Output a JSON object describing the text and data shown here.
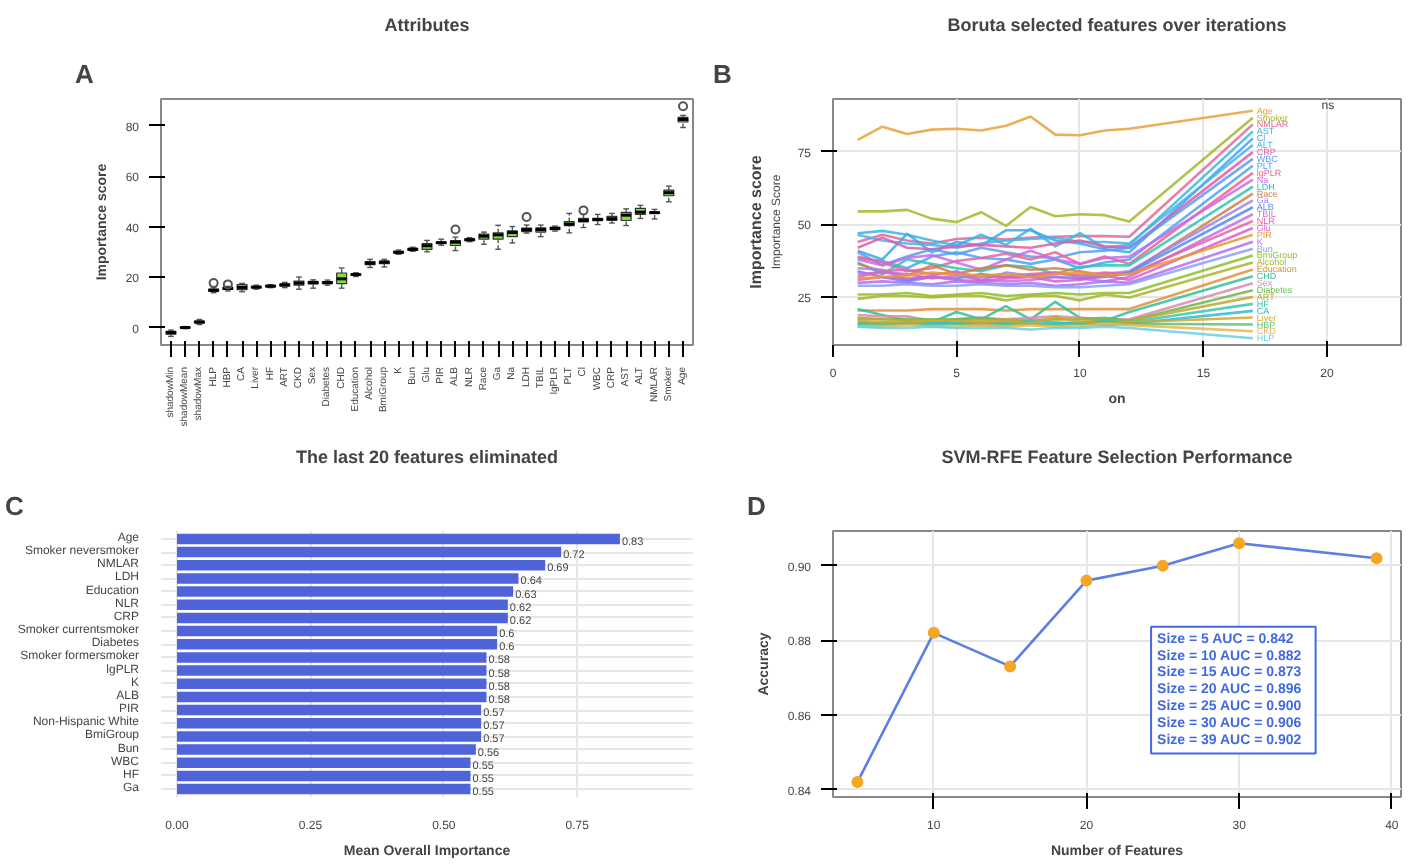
{
  "chart_data": [
    {
      "type": "box",
      "title": "Attributes",
      "ylabel": "Importance score",
      "annotations": [
        "A"
      ],
      "categories": [
        "shadowMin",
        "shadowMean",
        "shadowMax",
        "HLP",
        "HBP",
        "CA",
        "Liver",
        "HF",
        "ART",
        "CKD",
        "Sex",
        "Diabetes",
        "CHD",
        "Education",
        "Alcohol",
        "BmiGroup",
        "K",
        "Bun",
        "Glu",
        "PIR",
        "ALB",
        "NLR",
        "Race",
        "Ga",
        "Na",
        "LDH",
        "TBIL",
        "lgPLR",
        "PLT",
        "Cl",
        "WBC",
        "CRP",
        "AST",
        "ALT",
        "NMLAR",
        "Smoker",
        "Age"
      ],
      "colors": [
        "#2a4dc8",
        "#2a4dc8",
        "#2a4dc8",
        "#7fe03a",
        "#7fe03a",
        "#7fe03a",
        "#7fe03a",
        "#7fe03a",
        "#7fe03a",
        "#7fe03a",
        "#7fe03a",
        "#7fe03a",
        "#7fe03a",
        "#7fe03a",
        "#7fe03a",
        "#7fe03a",
        "#7fe03a",
        "#7fe03a",
        "#7fe03a",
        "#7fe03a",
        "#7fe03a",
        "#7fe03a",
        "#7fe03a",
        "#7fe03a",
        "#7fe03a",
        "#7fe03a",
        "#7fe03a",
        "#7fe03a",
        "#7fe03a",
        "#7fe03a",
        "#7fe03a",
        "#7fe03a",
        "#7fe03a",
        "#7fe03a",
        "#7fe03a",
        "#7fe03a",
        "#7fe03a"
      ],
      "boxes": [
        {
          "low": -3.5,
          "q1": -2.6,
          "median": -2,
          "q3": -1.5,
          "high": -1
        },
        {
          "low": -0.4,
          "q1": -0.2,
          "median": 0,
          "q3": 0.2,
          "high": 0.4
        },
        {
          "low": 1.2,
          "q1": 1.8,
          "median": 2.2,
          "q3": 2.6,
          "high": 3.2
        },
        {
          "low": 13.8,
          "q1": 14.3,
          "median": 14.8,
          "q3": 15.2,
          "high": 16,
          "outliers": [
            17.6
          ]
        },
        {
          "low": 14.5,
          "q1": 15.1,
          "median": 15.5,
          "q3": 15.9,
          "high": 16.3,
          "outliers": [
            17.1
          ]
        },
        {
          "low": 14.2,
          "q1": 15,
          "median": 15.9,
          "q3": 17,
          "high": 17.5
        },
        {
          "low": 15.2,
          "q1": 15.7,
          "median": 16,
          "q3": 16.3,
          "high": 16.8
        },
        {
          "low": 15.8,
          "q1": 16.1,
          "median": 16.4,
          "q3": 16.7,
          "high": 17
        },
        {
          "low": 15.8,
          "q1": 16.4,
          "median": 16.9,
          "q3": 17.3,
          "high": 17.9
        },
        {
          "low": 15.2,
          "q1": 16.8,
          "median": 17.6,
          "q3": 18.4,
          "high": 20
        },
        {
          "low": 15.6,
          "q1": 17.3,
          "median": 17.8,
          "q3": 18.3,
          "high": 18.9
        },
        {
          "low": 16.8,
          "q1": 17.4,
          "median": 17.8,
          "q3": 18.2,
          "high": 18.8
        },
        {
          "low": 15.6,
          "q1": 17.4,
          "median": 19.3,
          "q3": 21.6,
          "high": 23.6
        },
        {
          "low": 20.2,
          "q1": 20.7,
          "median": 21,
          "q3": 21.3,
          "high": 21.7
        },
        {
          "low": 23.8,
          "q1": 24.9,
          "median": 25.5,
          "q3": 26.1,
          "high": 27
        },
        {
          "low": 24,
          "q1": 25.3,
          "median": 25.9,
          "q3": 26.3,
          "high": 27
        },
        {
          "low": 29,
          "q1": 29.5,
          "median": 29.8,
          "q3": 30.2,
          "high": 30.7
        },
        {
          "low": 30.2,
          "q1": 30.6,
          "median": 31,
          "q3": 31.4,
          "high": 31.8
        },
        {
          "low": 30,
          "q1": 31,
          "median": 32.4,
          "q3": 33.2,
          "high": 34.5
        },
        {
          "low": 32.6,
          "q1": 33.3,
          "median": 33.6,
          "q3": 33.9,
          "high": 35
        },
        {
          "low": 30.5,
          "q1": 32.5,
          "median": 33.8,
          "q3": 34.4,
          "high": 35.8,
          "outliers": [
            38.8
          ]
        },
        {
          "low": 34,
          "q1": 34.4,
          "median": 34.8,
          "q3": 35.1,
          "high": 35.6
        },
        {
          "low": 33,
          "q1": 35,
          "median": 36.2,
          "q3": 37,
          "high": 37.8
        },
        {
          "low": 31,
          "q1": 35,
          "median": 36.7,
          "q3": 37.5,
          "high": 40.5
        },
        {
          "low": 33.5,
          "q1": 36,
          "median": 37.6,
          "q3": 38.3,
          "high": 40
        },
        {
          "low": 37.4,
          "q1": 38,
          "median": 38.8,
          "q3": 39.4,
          "high": 40.6,
          "outliers": [
            43.8
          ]
        },
        {
          "low": 36,
          "q1": 37.8,
          "median": 38.8,
          "q3": 39.5,
          "high": 40.6
        },
        {
          "low": 38.2,
          "q1": 38.8,
          "median": 39.3,
          "q3": 39.7,
          "high": 40.2
        },
        {
          "low": 37.5,
          "q1": 40.4,
          "median": 41,
          "q3": 42,
          "high": 45.2
        },
        {
          "low": 39.6,
          "q1": 41.8,
          "median": 42.4,
          "q3": 43.2,
          "high": 44.8,
          "outliers": [
            46.4
          ]
        },
        {
          "low": 40.8,
          "q1": 42.3,
          "median": 42.8,
          "q3": 43.2,
          "high": 44.8
        },
        {
          "low": 41.4,
          "q1": 42.4,
          "median": 43.1,
          "q3": 44,
          "high": 45.2
        },
        {
          "low": 40.4,
          "q1": 42.4,
          "median": 44.5,
          "q3": 45.6,
          "high": 47
        },
        {
          "low": 43.2,
          "q1": 44.8,
          "median": 45.7,
          "q3": 47.2,
          "high": 48.4
        },
        {
          "low": 43,
          "q1": 45.2,
          "median": 45.5,
          "q3": 45.8,
          "high": 46.8
        },
        {
          "low": 49.8,
          "q1": 52.2,
          "median": 53.4,
          "q3": 54.4,
          "high": 56
        },
        {
          "low": 79.2,
          "q1": 81.4,
          "median": 82.4,
          "q3": 83.2,
          "high": 84,
          "outliers": [
            87.6
          ]
        }
      ],
      "ylim": [
        -6.9,
        90.5
      ],
      "yticks": [
        0,
        20,
        40,
        60,
        80
      ]
    },
    {
      "type": "line",
      "title": "Boruta selected features over iterations",
      "ylabel": "Importance score",
      "xlabel": "on",
      "annotations": [
        "B",
        "ns",
        "Importance Score"
      ],
      "x": [
        1,
        2,
        3,
        4,
        5,
        6,
        7,
        8,
        9,
        10,
        11,
        12,
        17
      ],
      "xlim": [
        0,
        23
      ],
      "xticks": [
        0,
        5,
        10,
        15,
        20
      ],
      "ylim": [
        8.7,
        93
      ],
      "yticks": [
        25,
        50,
        75
      ],
      "grid": true,
      "series": [
        {
          "name": "Age",
          "color": "#e8a23a",
          "values": [
            79,
            83.5,
            81,
            82.5,
            82.8,
            82.2,
            83.8,
            87,
            80.8,
            80.6,
            82.2,
            82.8,
            89
          ]
        },
        {
          "name": "Smoker",
          "color": "#a3b82a",
          "values": [
            54.5,
            54.5,
            55,
            52,
            50.8,
            54.2,
            49.5,
            56,
            52.8,
            53.5,
            53.2,
            51,
            86.6
          ]
        },
        {
          "name": "NMLAR",
          "color": "#e0679a",
          "values": [
            44,
            46.5,
            44.5,
            43.5,
            45,
            45.5,
            44.8,
            45.5,
            45.8,
            46,
            46,
            45.8,
            84.3
          ]
        },
        {
          "name": "AST",
          "color": "#35b8e0",
          "values": [
            47,
            47.8,
            46.5,
            44.5,
            42.8,
            46.5,
            43,
            48.5,
            42.5,
            47,
            42,
            43,
            81.9
          ]
        },
        {
          "name": "Cl",
          "color": "#3aa8f0",
          "values": [
            41,
            38,
            46.8,
            40.5,
            44,
            42.8,
            48,
            48,
            44.5,
            43.5,
            41.5,
            40.5,
            79.5
          ]
        },
        {
          "name": "ALT",
          "color": "#4ab0ea",
          "values": [
            46.5,
            44.5,
            43.5,
            43,
            42,
            43.5,
            44.5,
            45,
            45.5,
            44,
            44,
            43.5,
            77.2
          ]
        },
        {
          "name": "CRP",
          "color": "#e25ca8",
          "values": [
            42,
            45.5,
            42,
            41.5,
            42.5,
            43,
            42.5,
            42,
            43.5,
            44.5,
            42.5,
            42,
            74.8
          ]
        },
        {
          "name": "WBC",
          "color": "#5a9bf0",
          "values": [
            40.5,
            36,
            39,
            41.5,
            39.8,
            42,
            40.5,
            39,
            38.5,
            40.5,
            41,
            42,
            72.5
          ]
        },
        {
          "name": "PLT",
          "color": "#4aa3f5",
          "values": [
            38.5,
            37.5,
            35,
            39,
            40.5,
            38.5,
            38,
            36.5,
            38,
            35,
            37,
            38,
            70.1
          ]
        },
        {
          "name": "lgPLR",
          "color": "#f06292",
          "values": [
            39,
            37,
            34,
            35,
            37.5,
            38.5,
            40,
            38,
            40.5,
            36.5,
            39,
            36.5,
            67.7
          ]
        },
        {
          "name": "Na",
          "color": "#c86be8",
          "values": [
            38,
            36,
            38.5,
            39.5,
            37,
            34.5,
            38,
            41,
            38,
            36.5,
            38.5,
            39,
            65.4
          ]
        },
        {
          "name": "LDH",
          "color": "#2ec4b6",
          "values": [
            37,
            33,
            38,
            36.5,
            35,
            34,
            36,
            35.5,
            33,
            35.5,
            36,
            36,
            63
          ]
        },
        {
          "name": "Race",
          "color": "#d17f4a",
          "values": [
            36.5,
            34,
            32.5,
            36,
            33,
            35,
            36,
            34.5,
            35,
            34,
            32.5,
            33.5,
            60.6
          ]
        },
        {
          "name": "Ga",
          "color": "#9a85f0",
          "values": [
            35,
            34.5,
            31,
            32.5,
            34,
            31,
            33.5,
            32.5,
            33.5,
            32,
            33,
            34,
            58.3
          ]
        },
        {
          "name": "ALB",
          "color": "#4f8df5",
          "values": [
            34,
            32,
            30.5,
            32,
            31.5,
            33,
            32,
            32.5,
            32,
            31.5,
            32,
            33.5,
            55.9
          ]
        },
        {
          "name": "TBIL",
          "color": "#c76fe0",
          "values": [
            33,
            33.5,
            33,
            31.5,
            32.5,
            31,
            30.5,
            31,
            32,
            31.5,
            30.5,
            32,
            53.5
          ]
        },
        {
          "name": "NLR",
          "color": "#e066b0",
          "values": [
            32,
            34,
            34.5,
            33,
            33.5,
            32,
            32,
            33,
            33.5,
            32.5,
            33.5,
            33,
            51.2
          ]
        },
        {
          "name": "Glu",
          "color": "#d85fd0",
          "values": [
            31,
            32,
            31.5,
            32,
            31,
            30.5,
            31.5,
            32,
            30.5,
            31,
            32.5,
            31,
            48.8
          ]
        },
        {
          "name": "PIR",
          "color": "#e89a30",
          "values": [
            31.5,
            32,
            32.5,
            33.5,
            33,
            32.5,
            33,
            32,
            33,
            33.5,
            32.5,
            33,
            46.5
          ]
        },
        {
          "name": "K",
          "color": "#b070f0",
          "values": [
            30,
            30.5,
            30,
            29.5,
            30.5,
            30,
            29.5,
            30,
            29,
            29.5,
            30.5,
            30,
            44.1
          ]
        },
        {
          "name": "Bun",
          "color": "#8aa0f5",
          "values": [
            29,
            29,
            29.5,
            29,
            29,
            29.5,
            29,
            29,
            28.5,
            28.5,
            29,
            29.5,
            41.7
          ]
        },
        {
          "name": "BmiGroup",
          "color": "#8cbf2a",
          "values": [
            26,
            26,
            26.5,
            25.5,
            26,
            26.5,
            25.5,
            26,
            26.5,
            26,
            26.5,
            26.5,
            39.4
          ]
        },
        {
          "name": "Alcohol",
          "color": "#a8b52c",
          "values": [
            24.5,
            25.5,
            25.5,
            25,
            25.5,
            25.5,
            24,
            25.5,
            25.5,
            24,
            26,
            25,
            37
          ]
        },
        {
          "name": "Education",
          "color": "#e0903a",
          "values": [
            20.5,
            20.5,
            20.5,
            21,
            21,
            21,
            20.5,
            21,
            21,
            21,
            21,
            21,
            34.6
          ]
        },
        {
          "name": "CHD",
          "color": "#30c0a0",
          "values": [
            21,
            19,
            17,
            16.5,
            20,
            17.5,
            22,
            17.5,
            23.5,
            18,
            17,
            20,
            32.3
          ]
        },
        {
          "name": "Sex",
          "color": "#d98ab0",
          "values": [
            19,
            18.5,
            18.5,
            17,
            17.5,
            18,
            17.5,
            18,
            18.5,
            18,
            17.5,
            17.5,
            29.9
          ]
        },
        {
          "name": "Diabetes",
          "color": "#6cb84a",
          "values": [
            18,
            17.5,
            17.5,
            17.5,
            17.5,
            18,
            17,
            17,
            17.5,
            17.5,
            18,
            17,
            27.5
          ]
        },
        {
          "name": "ART",
          "color": "#c0a830",
          "values": [
            17.5,
            17.5,
            17,
            17,
            17,
            17,
            17.5,
            17,
            17.5,
            17.5,
            17,
            17,
            25.2
          ]
        },
        {
          "name": "HF",
          "color": "#38c8b0",
          "values": [
            16.5,
            16,
            16.5,
            16.5,
            16,
            16.5,
            16,
            17,
            16.5,
            16,
            17,
            16.5,
            22.8
          ]
        },
        {
          "name": "CA",
          "color": "#30b8d0",
          "values": [
            16,
            16.5,
            16,
            16,
            16.5,
            16,
            16.5,
            16,
            16,
            16.5,
            16.5,
            16,
            20.4
          ]
        },
        {
          "name": "Liver",
          "color": "#d4a830",
          "values": [
            17,
            16.5,
            16.5,
            17,
            17,
            16.5,
            17,
            16,
            18.5,
            16.5,
            16,
            16.5,
            18.1
          ]
        },
        {
          "name": "HBP",
          "color": "#5cc07a",
          "values": [
            15.5,
            15.5,
            16,
            15.5,
            16,
            15.5,
            15.5,
            16,
            15.5,
            16,
            15.5,
            16,
            15.7
          ]
        },
        {
          "name": "CKD",
          "color": "#e5b84a",
          "values": [
            15,
            15,
            15.5,
            15,
            15,
            15.5,
            15,
            15.5,
            15,
            15,
            16,
            15.5,
            13.4
          ]
        },
        {
          "name": "HLP",
          "color": "#6ad0e8",
          "values": [
            15,
            14.5,
            14.5,
            15,
            14.5,
            14.5,
            14.5,
            14,
            14.5,
            14.5,
            15,
            14.5,
            11
          ]
        }
      ]
    },
    {
      "type": "bar",
      "orientation": "horizontal",
      "title": "The last 20 features eliminated",
      "xlabel": "Mean Overall Importance",
      "annotations": [
        "C"
      ],
      "categories": [
        "Age",
        "Smoker neversmoker",
        "NMLAR",
        "LDH",
        "Education",
        "NLR",
        "CRP",
        "Smoker currentsmoker",
        "Diabetes",
        "Smoker formersmoker",
        "lgPLR",
        "K",
        "ALB",
        "PIR",
        "Non-Hispanic White",
        "BmiGroup",
        "Bun",
        "WBC",
        "HF",
        "Ga"
      ],
      "values": [
        0.83,
        0.72,
        0.69,
        0.64,
        0.63,
        0.62,
        0.62,
        0.6,
        0.6,
        0.58,
        0.58,
        0.58,
        0.58,
        0.57,
        0.57,
        0.57,
        0.56,
        0.55,
        0.55,
        0.55
      ],
      "color": "#4f64d9",
      "data_labels": true,
      "xlim": [
        -0.03,
        0.967
      ],
      "xticks": [
        {
          "value": 0,
          "label": "0.00"
        },
        0.25,
        {
          "value": 0.5,
          "label": "0.50"
        },
        0.75
      ],
      "grid": true
    },
    {
      "type": "line",
      "title": "SVM-RFE Feature Selection Performance",
      "xlabel": "Number of Features",
      "ylabel": "Accuracy",
      "annotations": [
        "D",
        "Size = 5    AUC = 0.842",
        "Size = 10   AUC = 0.882",
        "Size = 15   AUC = 0.873",
        "Size = 20   AUC = 0.896",
        "Size = 25   AUC = 0.900",
        "Size = 30   AUC = 0.906",
        "Size = 39   AUC = 0.902"
      ],
      "x": [
        5,
        10,
        15,
        20,
        25,
        30,
        39
      ],
      "series": [
        {
          "color": "#4169e1",
          "values": [
            0.842,
            0.882,
            0.873,
            0.896,
            0.9,
            0.906,
            0.902
          ]
        },
        {
          "type": "scatter",
          "marker": "circle",
          "color": "#f5a623",
          "values": [
            0.842,
            0.882,
            0.873,
            0.896,
            0.9,
            0.906,
            0.902
          ]
        }
      ],
      "xlim": [
        3.4,
        40.6
      ],
      "xticks": [
        10,
        20,
        30,
        40
      ],
      "ylim": [
        0.838,
        0.9093
      ],
      "yticks": [
        {
          "value": 0.84,
          "label": "0.84"
        },
        {
          "value": 0.86,
          "label": "0.86"
        },
        {
          "value": 0.88,
          "label": "0.88"
        },
        {
          "value": 0.9,
          "label": "0.90"
        }
      ],
      "grid": true
    }
  ]
}
